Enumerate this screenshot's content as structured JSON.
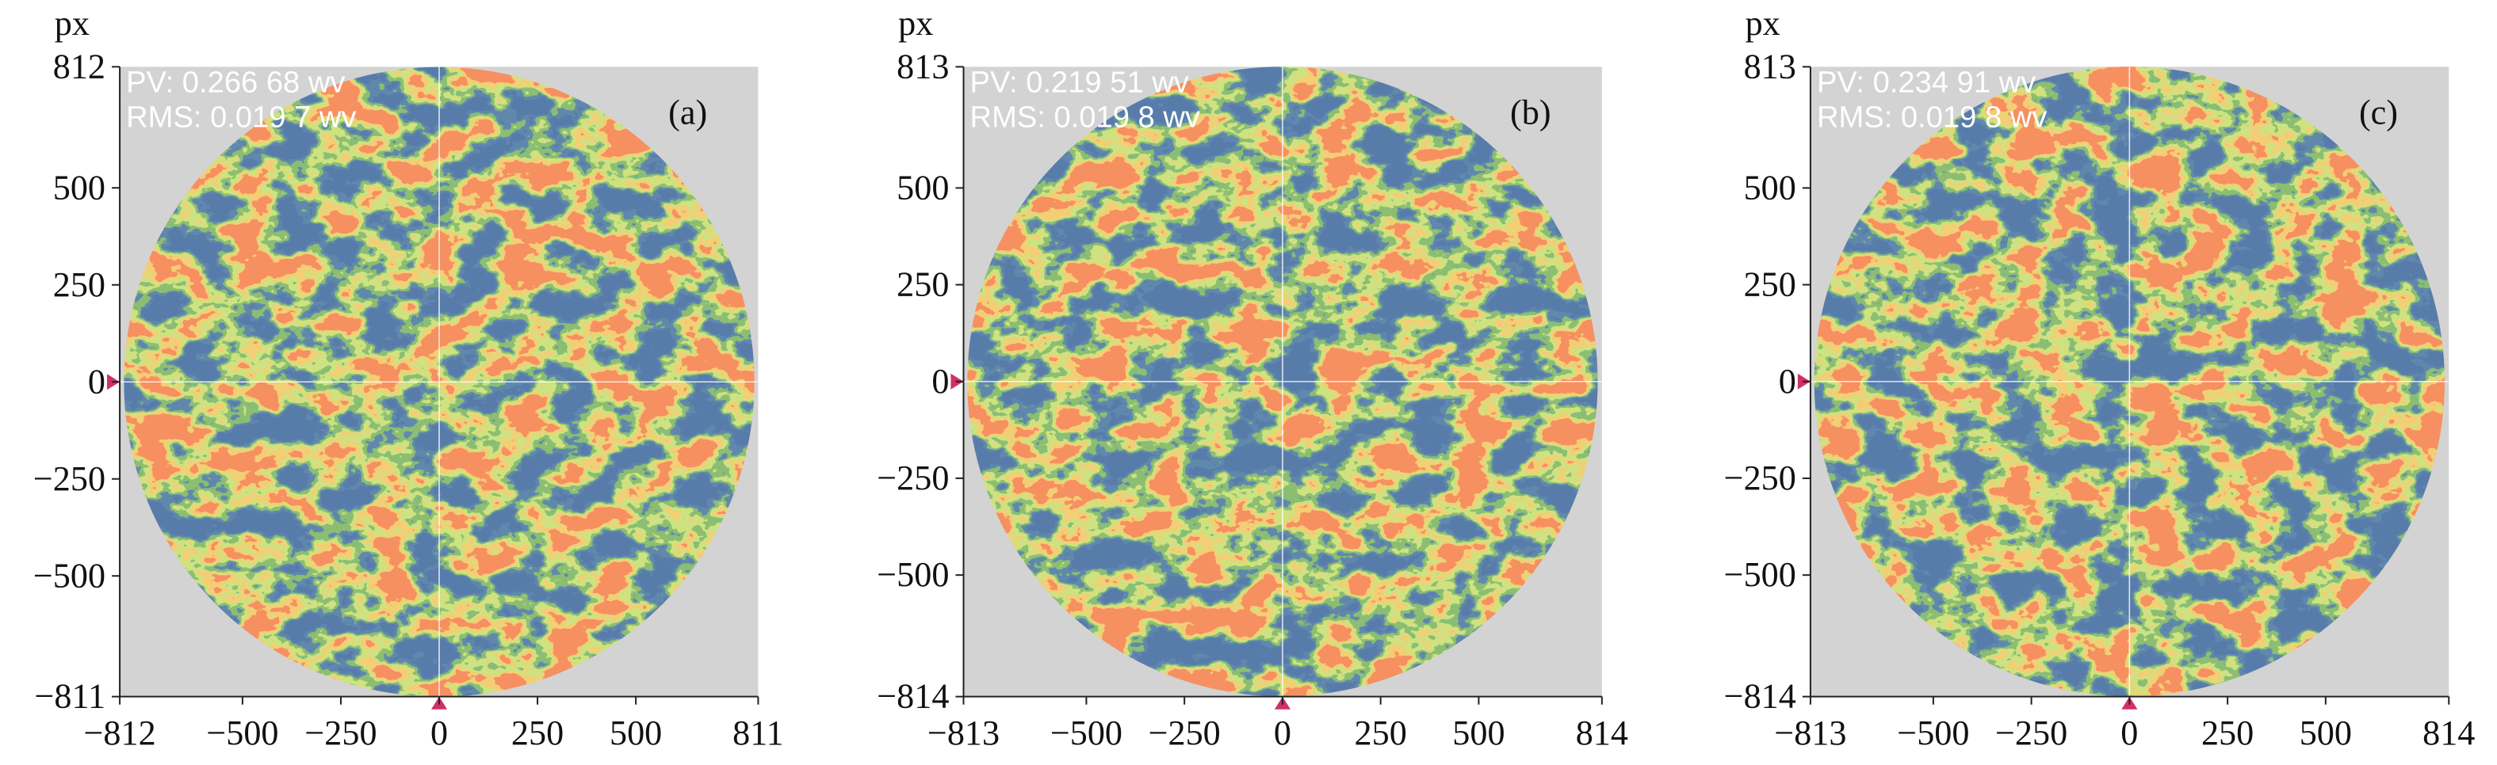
{
  "chart_data": [
    {
      "type": "surface-map",
      "y_label": "px",
      "panel_label": "(a)",
      "annotations": [
        "PV: 0.266 68 wv",
        "RMS: 0.019 7 wv"
      ],
      "xlim": [
        -812,
        811
      ],
      "ylim": [
        -811,
        812
      ],
      "xticks": [
        {
          "value": -812,
          "label": "−812"
        },
        {
          "value": -500,
          "label": "−500"
        },
        {
          "value": -250,
          "label": "−250"
        },
        0,
        250,
        500,
        811
      ],
      "yticks": [
        {
          "value": -811,
          "label": "−811"
        },
        {
          "value": -500,
          "label": "−500"
        },
        {
          "value": -250,
          "label": "−250"
        },
        0,
        250,
        500,
        812
      ]
    },
    {
      "type": "surface-map",
      "y_label": "px",
      "panel_label": "(b)",
      "annotations": [
        "PV: 0.219 51 wv",
        "RMS: 0.019 8 wv"
      ],
      "xlim": [
        -813,
        814
      ],
      "ylim": [
        -814,
        813
      ],
      "xticks": [
        {
          "value": -813,
          "label": "−813"
        },
        {
          "value": -500,
          "label": "−500"
        },
        {
          "value": -250,
          "label": "−250"
        },
        0,
        250,
        500,
        814
      ],
      "yticks": [
        {
          "value": -814,
          "label": "−814"
        },
        {
          "value": -500,
          "label": "−500"
        },
        {
          "value": -250,
          "label": "−250"
        },
        0,
        250,
        500,
        813
      ]
    },
    {
      "type": "surface-map",
      "y_label": "px",
      "panel_label": "(c)",
      "annotations": [
        "PV: 0.234 91 wv",
        "RMS: 0.019 8 wv"
      ],
      "xlim": [
        -813,
        814
      ],
      "ylim": [
        -814,
        813
      ],
      "xticks": [
        {
          "value": -813,
          "label": "−813"
        },
        {
          "value": -500,
          "label": "−500"
        },
        {
          "value": -250,
          "label": "−250"
        },
        0,
        250,
        500,
        814
      ],
      "yticks": [
        {
          "value": -814,
          "label": "−814"
        },
        {
          "value": -500,
          "label": "−500"
        },
        {
          "value": -250,
          "label": "−250"
        },
        0,
        250,
        500,
        813
      ]
    }
  ]
}
